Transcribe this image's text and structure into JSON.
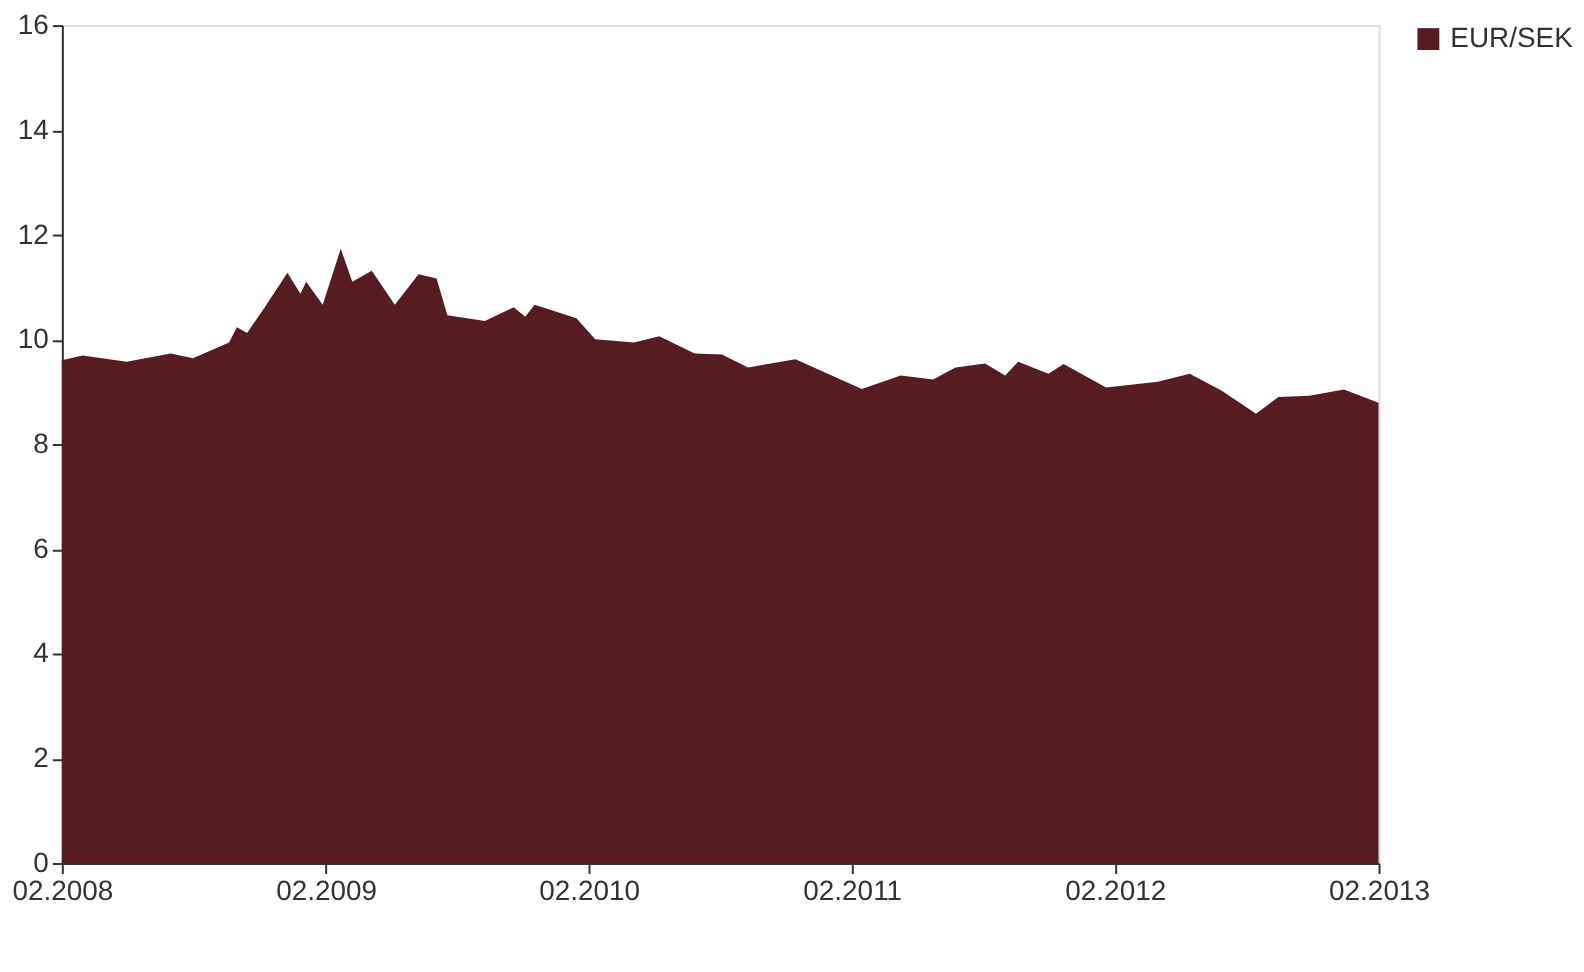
{
  "chart_data": {
    "type": "area",
    "x": [
      "2008-02-01",
      "2008-03-01",
      "2008-05-01",
      "2008-07-01",
      "2008-08-01",
      "2008-09-20",
      "2008-10-01",
      "2008-10-15",
      "2008-11-10",
      "2008-12-10",
      "2008-12-28",
      "2009-01-05",
      "2009-01-28",
      "2009-02-22",
      "2009-03-10",
      "2009-04-06",
      "2009-05-08",
      "2009-06-10",
      "2009-07-05",
      "2009-07-20",
      "2009-09-10",
      "2009-10-20",
      "2009-11-05",
      "2009-11-18",
      "2010-01-15",
      "2010-02-10",
      "2010-04-05",
      "2010-05-10",
      "2010-06-28",
      "2010-08-05",
      "2010-09-10",
      "2010-11-15",
      "2011-02-15",
      "2011-04-10",
      "2011-05-25",
      "2011-06-25",
      "2011-08-05",
      "2011-09-02",
      "2011-09-20",
      "2011-11-01",
      "2011-11-22",
      "2012-01-20",
      "2012-04-01",
      "2012-05-15",
      "2012-06-28",
      "2012-08-15",
      "2012-09-15",
      "2012-10-28",
      "2012-12-15",
      "2013-02-01"
    ],
    "series": [
      {
        "name": "EUR/SEK",
        "color": "#561c1f",
        "values": [
          9.6,
          9.69,
          9.57,
          9.73,
          9.64,
          9.94,
          10.23,
          10.12,
          10.64,
          11.27,
          10.87,
          11.1,
          10.66,
          11.73,
          11.1,
          11.31,
          10.66,
          11.24,
          11.16,
          10.46,
          10.35,
          10.61,
          10.43,
          10.66,
          10.4,
          10.0,
          9.94,
          10.06,
          9.73,
          9.71,
          9.46,
          9.62,
          9.05,
          9.31,
          9.23,
          9.46,
          9.54,
          9.31,
          9.57,
          9.34,
          9.53,
          9.08,
          9.19,
          9.34,
          9.02,
          8.58,
          8.9,
          8.92,
          9.04,
          8.79
        ]
      }
    ],
    "xlim": [
      "2008-02-01",
      "2013-02-01"
    ],
    "xticks": [
      {
        "value": "2008-02-01",
        "label": "02.2008"
      },
      {
        "value": "2009-02-01",
        "label": "02.2009"
      },
      {
        "value": "2010-02-01",
        "label": "02.2010"
      },
      {
        "value": "2011-02-01",
        "label": "02.2011"
      },
      {
        "value": "2012-02-01",
        "label": "02.2012"
      },
      {
        "value": "2013-02-01",
        "label": "02.2013"
      }
    ],
    "ylim": [
      0,
      16
    ],
    "yticks": [
      0,
      2,
      4,
      6,
      8,
      10,
      12,
      14,
      16
    ],
    "grid": false,
    "legend": "top right"
  }
}
